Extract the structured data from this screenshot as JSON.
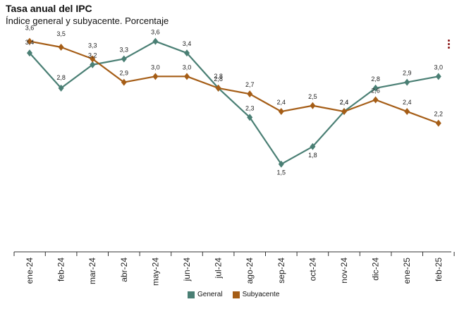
{
  "chart_data": {
    "type": "line",
    "title": "Tasa anual del IPC",
    "subtitle": "Índice general y subyacente. Porcentaje",
    "categories": [
      "ene-24",
      "feb-24",
      "mar-24",
      "abr-24",
      "may-24",
      "jun-24",
      "jul-24",
      "ago-24",
      "sep-24",
      "oct-24",
      "nov-24",
      "dic-24",
      "ene-25",
      "feb-25"
    ],
    "series": [
      {
        "name": "General",
        "color": "#4a7f74",
        "values": [
          3.4,
          2.8,
          3.2,
          3.3,
          3.6,
          3.4,
          2.8,
          2.3,
          1.5,
          1.8,
          2.4,
          2.8,
          2.9,
          3.0
        ]
      },
      {
        "name": "Subyacente",
        "color": "#a55d16",
        "values": [
          3.6,
          3.5,
          3.3,
          2.9,
          3.0,
          3.0,
          2.8,
          2.7,
          2.4,
          2.5,
          2.4,
          2.6,
          2.4,
          2.2
        ]
      }
    ],
    "ylim": [
      0.0,
      3.8
    ],
    "grid": false,
    "legend": "bottom-center"
  }
}
